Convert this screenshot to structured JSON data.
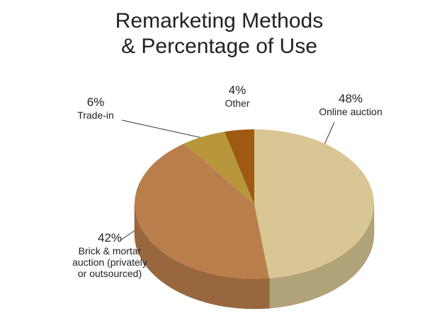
{
  "chart_data": {
    "type": "pie3d",
    "title": "Remarketing Methods & Percentage of Use",
    "categories": [
      "Online auction",
      "Brick & mortar auction (privately or outsourced)",
      "Trade-in",
      "Other"
    ],
    "values": [
      48,
      42,
      6,
      4
    ],
    "value_labels": [
      "48%",
      "42%",
      "6%",
      "4%"
    ],
    "colors": [
      "#d8c794",
      "#b97e4c",
      "#b8963b",
      "#9e5a12"
    ]
  }
}
